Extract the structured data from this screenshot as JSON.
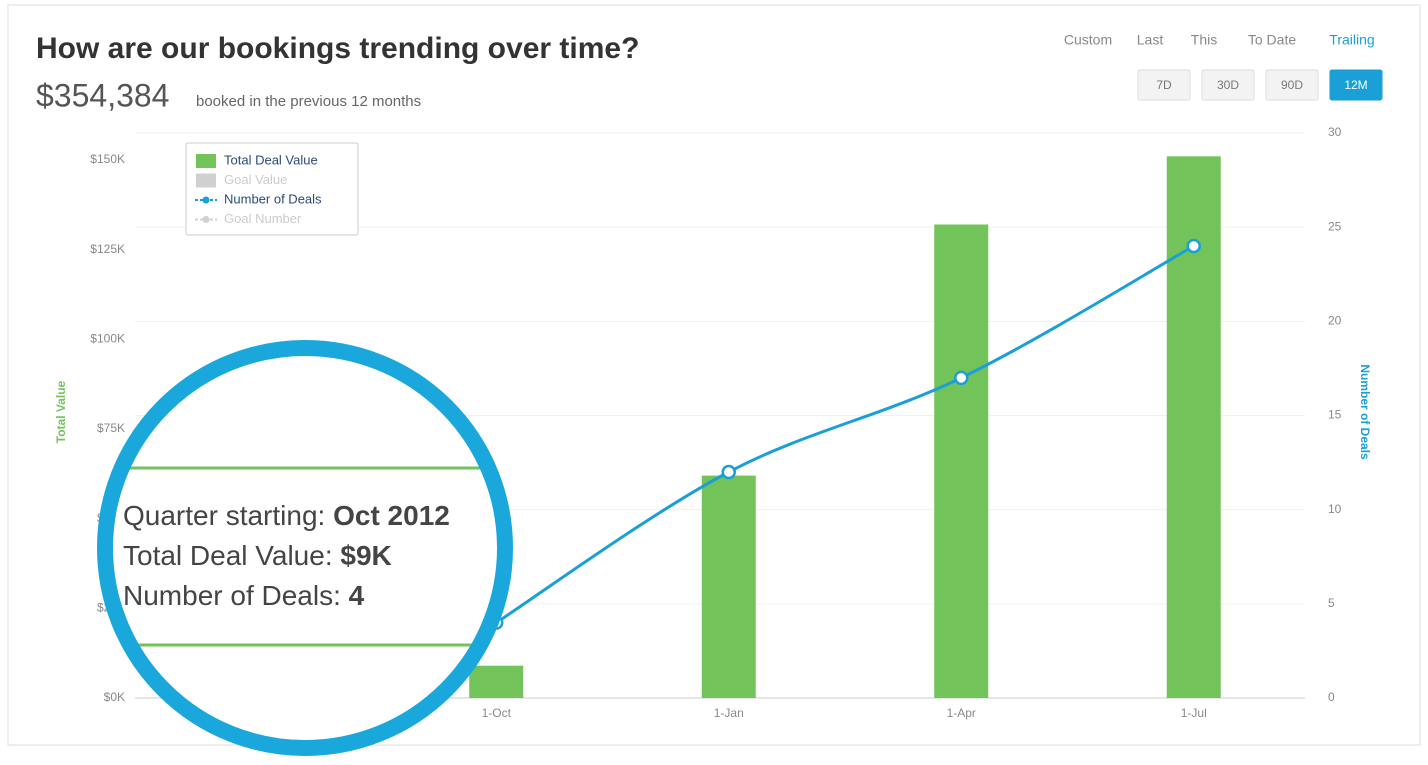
{
  "header": {
    "title": "How are our bookings trending over time?",
    "amount": "$354,384",
    "caption": "booked in the previous 12 months"
  },
  "filters": {
    "modes": [
      "Custom",
      "Last",
      "This",
      "To Date",
      "Trailing"
    ],
    "active_mode": "Trailing",
    "ranges": [
      "7D",
      "30D",
      "90D",
      "12M"
    ],
    "active_range": "12M"
  },
  "chart_data": {
    "type": "bar-line",
    "categories": [
      "1-Oct",
      "1-Jan",
      "1-Apr",
      "1-Jul"
    ],
    "ylabel": "Total Value",
    "y2label": "Number of Deals",
    "ylim": [
      0,
      157500
    ],
    "yticks": [
      {
        "value": 0,
        "label": "$0K"
      },
      {
        "value": 25000,
        "label": "$25K"
      },
      {
        "value": 50000,
        "label": "$50K"
      },
      {
        "value": 75000,
        "label": "$75K"
      },
      {
        "value": 100000,
        "label": "$100K"
      },
      {
        "value": 125000,
        "label": "$125K"
      },
      {
        "value": 150000,
        "label": "$150K"
      }
    ],
    "y2lim": [
      0,
      30
    ],
    "y2ticks": [
      0,
      5,
      10,
      15,
      20,
      25,
      30
    ],
    "grid": true,
    "legend": "upper left",
    "series": [
      {
        "name": "Total Deal Value",
        "kind": "bar",
        "color": "#72c35a",
        "values": [
          9000,
          62000,
          132000,
          151000
        ],
        "value_labels": [
          "$9K",
          null,
          null,
          null
        ]
      },
      {
        "name": "Number of Deals",
        "kind": "line",
        "axis": "y2",
        "color": "#1a9fd6",
        "values": [
          4,
          12,
          17,
          24
        ]
      },
      {
        "name": "Goal Value",
        "kind": "bar",
        "color": "#d0d0d0",
        "values": [
          null,
          null,
          null,
          null
        ]
      },
      {
        "name": "Goal Number",
        "kind": "line",
        "axis": "y2",
        "color": "#d0d0d0",
        "values": [
          null,
          null,
          null,
          null
        ]
      }
    ]
  },
  "tooltip": {
    "period_label": "Quarter starting:",
    "period": "Oct 2012",
    "value_label": "Total Deal Value:",
    "count_label": "Number of Deals:"
  }
}
